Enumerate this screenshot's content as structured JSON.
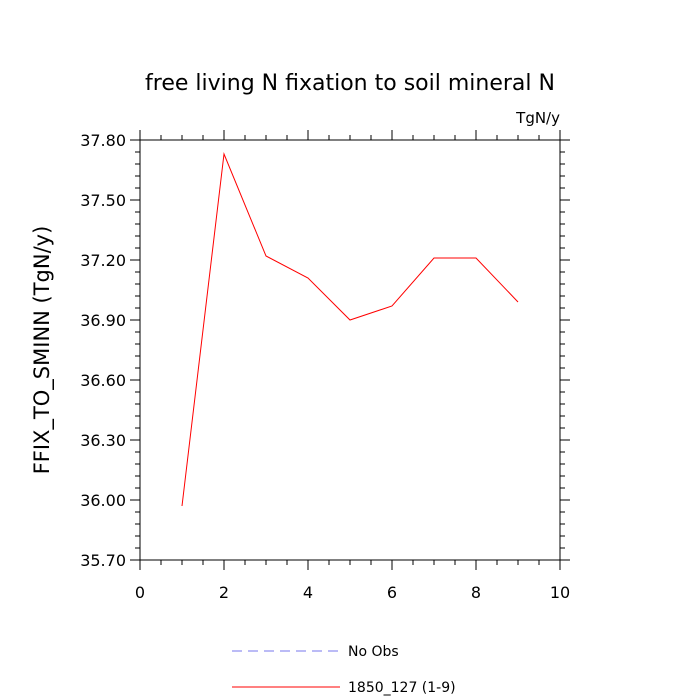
{
  "chart_data": {
    "type": "line",
    "title": "free living N fixation to soil mineral N",
    "units": "TgN/y",
    "ylabel": "FFIX_TO_SMINN  (TgN/y)",
    "xlabel": "",
    "xlim": [
      0,
      10
    ],
    "ylim": [
      35.7,
      37.8
    ],
    "x_ticks": [
      0,
      2,
      4,
      6,
      8,
      10
    ],
    "x_tick_labels": [
      "0",
      "2",
      "4",
      "6",
      "8",
      "10"
    ],
    "y_ticks": [
      35.7,
      36.0,
      36.3,
      36.6,
      36.9,
      37.2,
      37.5,
      37.8
    ],
    "y_tick_labels": [
      "35.70",
      "36.00",
      "36.30",
      "36.60",
      "36.90",
      "37.20",
      "37.50",
      "37.80"
    ],
    "grid": false,
    "legend_position": "bottom",
    "series": [
      {
        "name": "1850_127 (1-9)",
        "color": "#ff0000",
        "dash": "solid",
        "x": [
          1,
          2,
          3,
          4,
          5,
          6,
          7,
          8,
          9
        ],
        "values": [
          35.97,
          37.73,
          37.22,
          37.11,
          36.9,
          36.97,
          37.21,
          37.21,
          36.99
        ]
      }
    ],
    "legend": [
      {
        "label": "No Obs",
        "color": "#7777ee",
        "dash": "dashed"
      },
      {
        "label": "1850_127 (1-9)",
        "color": "#ff0000",
        "dash": "solid"
      }
    ]
  }
}
